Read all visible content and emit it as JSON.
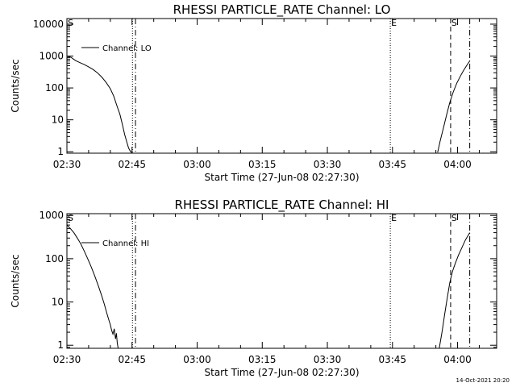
{
  "chart_data": [
    {
      "type": "line",
      "title": "RHESSI PARTICLE_RATE Channel: LO",
      "xlabel": "Start Time (27-Jun-08 02:27:30)",
      "ylabel": "Counts/sec",
      "yscale": "log",
      "xlim": [
        150.0,
        249.0
      ],
      "ylim": [
        0.9,
        15000
      ],
      "x_units": "minutes after 00:00 UT, 27-Jun-08",
      "xticks": [
        {
          "x": 150,
          "label": "02:30"
        },
        {
          "x": 165,
          "label": "02:45"
        },
        {
          "x": 180,
          "label": "03:00"
        },
        {
          "x": 195,
          "label": "03:15"
        },
        {
          "x": 210,
          "label": "03:30"
        },
        {
          "x": 225,
          "label": "03:45"
        },
        {
          "x": 240,
          "label": "04:00"
        }
      ],
      "yticks": [
        {
          "y": 1,
          "label": "1"
        },
        {
          "y": 10,
          "label": "10"
        },
        {
          "y": 100,
          "label": "100"
        },
        {
          "y": 1000,
          "label": "1000"
        },
        {
          "y": 10000,
          "label": "10000"
        }
      ],
      "legend": {
        "label": "Channel: LO",
        "position": "top-left"
      },
      "markers": [
        {
          "x": 150.0,
          "style": "dotted",
          "label": "S"
        },
        {
          "x": 165.1,
          "style": "dotted",
          "label": ""
        },
        {
          "x": 165.8,
          "style": "dashdot",
          "label": ""
        },
        {
          "x": 224.5,
          "style": "dotted",
          "label": "E"
        },
        {
          "x": 238.4,
          "style": "dashed",
          "label": "S"
        },
        {
          "x": 242.8,
          "style": "dashdot",
          "label": ""
        }
      ],
      "series": [
        {
          "name": "Channel: LO",
          "segments": [
            {
              "x": [
                150.0,
                151.0,
                152.0,
                153.0,
                154.0,
                155.0,
                156.0,
                157.0,
                158.0,
                159.0,
                160.0,
                160.8,
                161.5,
                162.2,
                162.8,
                163.3,
                163.8,
                164.2,
                164.6,
                164.9
              ],
              "y": [
                1000,
                900,
                720,
                620,
                540,
                460,
                380,
                300,
                220,
                150,
                95,
                55,
                28,
                15,
                7,
                3.5,
                2,
                1.3,
                1.05,
                0.95
              ]
            },
            {
              "x": [
                235.4,
                236.0,
                236.8,
                237.5,
                238.2,
                239.0,
                239.8,
                240.6,
                241.4,
                242.2,
                242.8
              ],
              "y": [
                0.95,
                2.2,
                6,
                15,
                35,
                75,
                140,
                230,
                360,
                530,
                700
              ]
            }
          ]
        }
      ]
    },
    {
      "type": "line",
      "title": "RHESSI PARTICLE_RATE Channel: HI",
      "xlabel": "Start Time (27-Jun-08 02:27:30)",
      "ylabel": "Counts/sec",
      "yscale": "log",
      "xlim": [
        150.0,
        249.0
      ],
      "ylim": [
        0.85,
        1100
      ],
      "x_units": "minutes after 00:00 UT, 27-Jun-08",
      "xticks": [
        {
          "x": 150,
          "label": "02:30"
        },
        {
          "x": 165,
          "label": "02:45"
        },
        {
          "x": 180,
          "label": "03:00"
        },
        {
          "x": 195,
          "label": "03:15"
        },
        {
          "x": 210,
          "label": "03:30"
        },
        {
          "x": 225,
          "label": "03:45"
        },
        {
          "x": 240,
          "label": "04:00"
        }
      ],
      "yticks": [
        {
          "y": 1,
          "label": "1"
        },
        {
          "y": 10,
          "label": "10"
        },
        {
          "y": 100,
          "label": "100"
        },
        {
          "y": 1000,
          "label": "1000"
        }
      ],
      "legend": {
        "label": "Channel: HI",
        "position": "top-left"
      },
      "markers": [
        {
          "x": 150.0,
          "style": "dotted",
          "label": "S"
        },
        {
          "x": 165.1,
          "style": "dotted",
          "label": ""
        },
        {
          "x": 165.8,
          "style": "dashdot",
          "label": ""
        },
        {
          "x": 224.5,
          "style": "dotted",
          "label": "E"
        },
        {
          "x": 238.4,
          "style": "dashed",
          "label": "S"
        },
        {
          "x": 242.8,
          "style": "dashdot",
          "label": ""
        }
      ],
      "series": [
        {
          "name": "Channel: HI",
          "segments": [
            {
              "x": [
                150.0,
                150.8,
                151.6,
                152.4,
                153.2,
                154.0,
                154.8,
                155.6,
                156.4,
                157.2,
                158.0,
                158.6,
                159.2,
                159.6,
                160.0,
                160.3,
                160.6,
                160.9,
                161.2,
                161.4,
                161.6,
                161.8
              ],
              "y": [
                600,
                500,
                400,
                300,
                220,
                150,
                100,
                65,
                40,
                24,
                14,
                9,
                5.5,
                4,
                3,
                2.2,
                1.8,
                2.4,
                1.4,
                1.9,
                1.1,
                0.87
              ]
            },
            {
              "x": [
                235.8,
                236.4,
                237.0,
                237.6,
                238.2,
                238.8,
                239.5,
                240.2,
                241.0,
                241.8,
                242.8
              ],
              "y": [
                0.87,
                2,
                5,
                12,
                28,
                50,
                80,
                120,
                180,
                270,
                400
              ]
            }
          ]
        }
      ]
    }
  ],
  "footer": {
    "timestamp": "14-Oct-2021 20:20"
  }
}
